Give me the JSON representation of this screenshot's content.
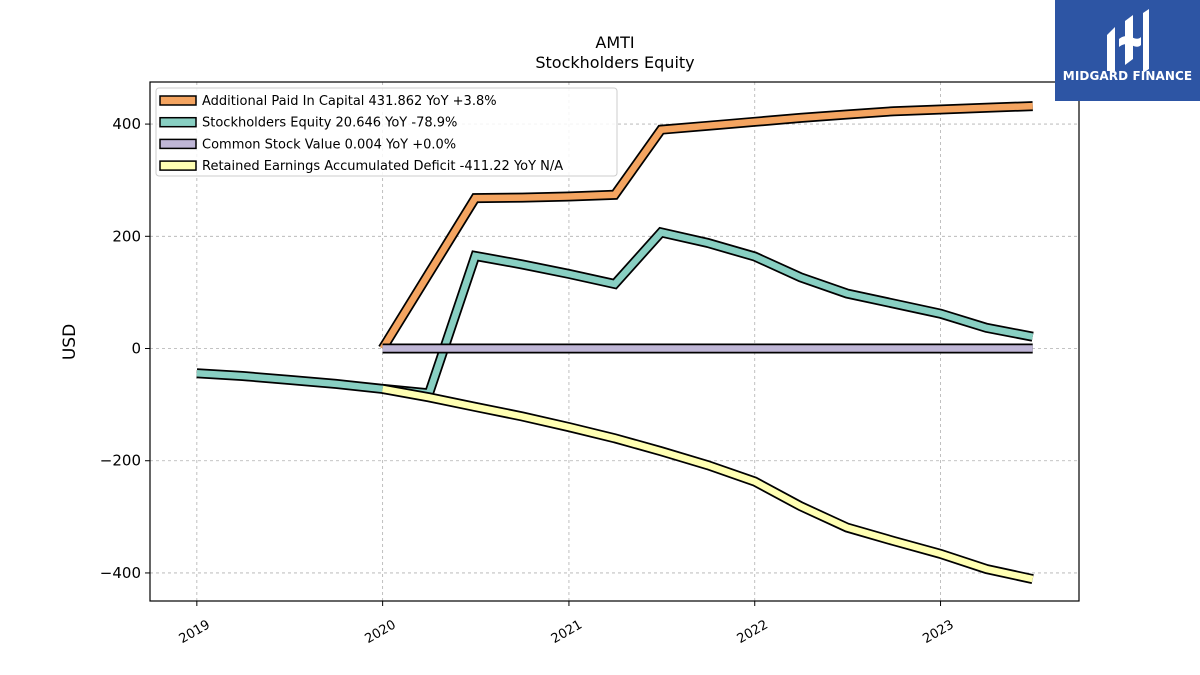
{
  "brand": {
    "name": "MIDGARD FINANCE"
  },
  "chart_data": {
    "type": "line",
    "title": "AMTI",
    "subtitle": "Stockholders  Equity",
    "xlabel": "",
    "ylabel": "USD",
    "xlim": [
      "2018-10-01",
      "2023-09-30"
    ],
    "ylim": [
      -450,
      475
    ],
    "yticks": [
      -400,
      -200,
      0,
      200,
      400
    ],
    "ytick_labels": [
      "−400",
      "−200",
      "0",
      "200",
      "400"
    ],
    "xticks": [
      "2019-01-01",
      "2020-01-01",
      "2021-01-01",
      "2022-01-01",
      "2023-01-01"
    ],
    "xtick_labels": [
      "2019",
      "2020",
      "2021",
      "2022",
      "2023"
    ],
    "grid": true,
    "legend_position": "top-left",
    "series": [
      {
        "name": "Additional Paid In Capital  431.862 YoY +3.8%",
        "color": "#f4a460",
        "x": [
          "2020-01-01",
          "2020-07-01",
          "2020-10-01",
          "2021-01-01",
          "2021-04-01",
          "2021-07-01",
          "2021-10-01",
          "2022-01-01",
          "2022-04-01",
          "2022-07-01",
          "2022-10-01",
          "2023-01-01",
          "2023-04-01",
          "2023-07-01"
        ],
        "values": [
          0,
          268,
          269,
          271,
          274,
          390,
          397,
          404,
          411,
          417,
          423,
          426,
          429,
          432
        ]
      },
      {
        "name": "Stockholders Equity  20.646 YoY -78.9%",
        "color": "#88cfc2",
        "x": [
          "2019-01-01",
          "2019-04-01",
          "2019-07-01",
          "2019-10-01",
          "2020-01-01",
          "2020-04-01",
          "2020-07-01",
          "2020-10-01",
          "2021-01-01",
          "2021-04-01",
          "2021-07-01",
          "2021-10-01",
          "2022-01-01",
          "2022-04-01",
          "2022-07-01",
          "2022-10-01",
          "2023-01-01",
          "2023-04-01",
          "2023-07-01"
        ],
        "values": [
          -44,
          -49,
          -56,
          -63,
          -72,
          -80,
          165,
          150,
          133,
          115,
          207,
          188,
          164,
          127,
          98,
          80,
          62,
          37,
          21
        ]
      },
      {
        "name": "Common Stock Value  0.004 YoY +0.0%",
        "color": "#bfb6d6",
        "x": [
          "2020-01-01",
          "2023-07-01"
        ],
        "values": [
          0.004,
          0.004
        ]
      },
      {
        "name": "Retained Earnings Accumulated Deficit  -411.22 YoY N/A",
        "color": "#ffffb3",
        "x": [
          "2020-01-01",
          "2020-04-01",
          "2020-07-01",
          "2020-10-01",
          "2021-01-01",
          "2021-04-01",
          "2021-07-01",
          "2021-10-01",
          "2022-01-01",
          "2022-04-01",
          "2022-07-01",
          "2022-10-01",
          "2023-01-01",
          "2023-04-01",
          "2023-07-01"
        ],
        "values": [
          -72,
          -87,
          -104,
          -121,
          -140,
          -160,
          -183,
          -208,
          -237,
          -281,
          -319,
          -343,
          -366,
          -393,
          -411
        ]
      }
    ]
  }
}
